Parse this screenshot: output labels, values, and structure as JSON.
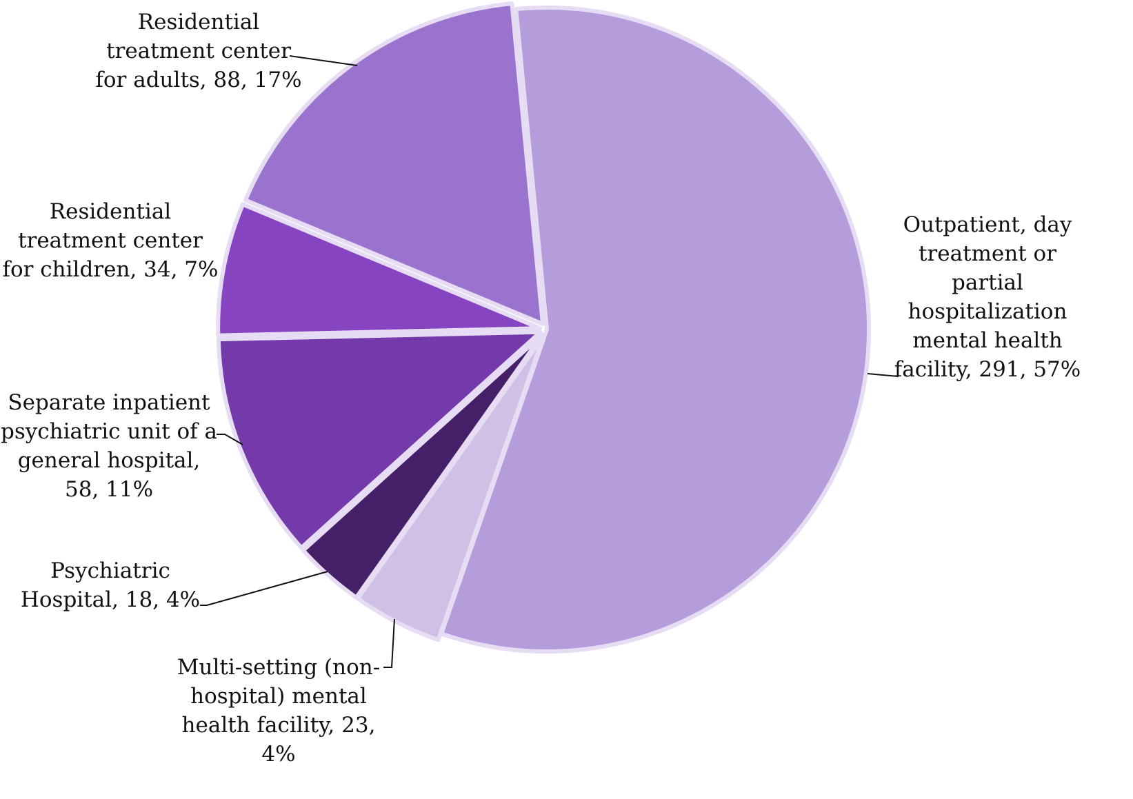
{
  "chart_data": {
    "type": "pie",
    "title": "",
    "unit": "count",
    "slices": [
      {
        "name": "Outpatient, day treatment or partial hospitalization mental health facility",
        "value": 291,
        "percent": 57,
        "color": "#b59cdb",
        "label_lines": [
          "Outpatient, day",
          "treatment or",
          "partial",
          "hospitalization",
          "mental health",
          "facility, 291, 57%"
        ]
      },
      {
        "name": "Multi-setting (non-hospital) mental health facility",
        "value": 23,
        "percent": 4,
        "color": "#cfc0e6",
        "label_lines": [
          "Multi-setting (non-",
          "hospital) mental",
          "health facility, 23,",
          "4%"
        ]
      },
      {
        "name": "Psychiatric Hospital",
        "value": 18,
        "percent": 4,
        "color": "#461f69",
        "label_lines": [
          "Psychiatric",
          "Hospital, 18, 4%"
        ]
      },
      {
        "name": "Separate inpatient psychiatric unit of a general hospital",
        "value": 58,
        "percent": 11,
        "color": "#7439aa",
        "label_lines": [
          "Separate inpatient",
          "psychiatric unit of a",
          "general hospital,",
          "58, 11%"
        ]
      },
      {
        "name": "Residential treatment center for children",
        "value": 34,
        "percent": 7,
        "color": "#8644c0",
        "label_lines": [
          "Residential",
          "treatment center",
          "for children, 34, 7%"
        ]
      },
      {
        "name": "Residential treatment center for adults",
        "value": 88,
        "percent": 17,
        "color": "#9a73cf",
        "label_lines": [
          "Residential",
          "treatment center",
          "for adults, 88, 17%"
        ]
      }
    ],
    "legend": "none",
    "border_color": "#e6dcf3"
  }
}
